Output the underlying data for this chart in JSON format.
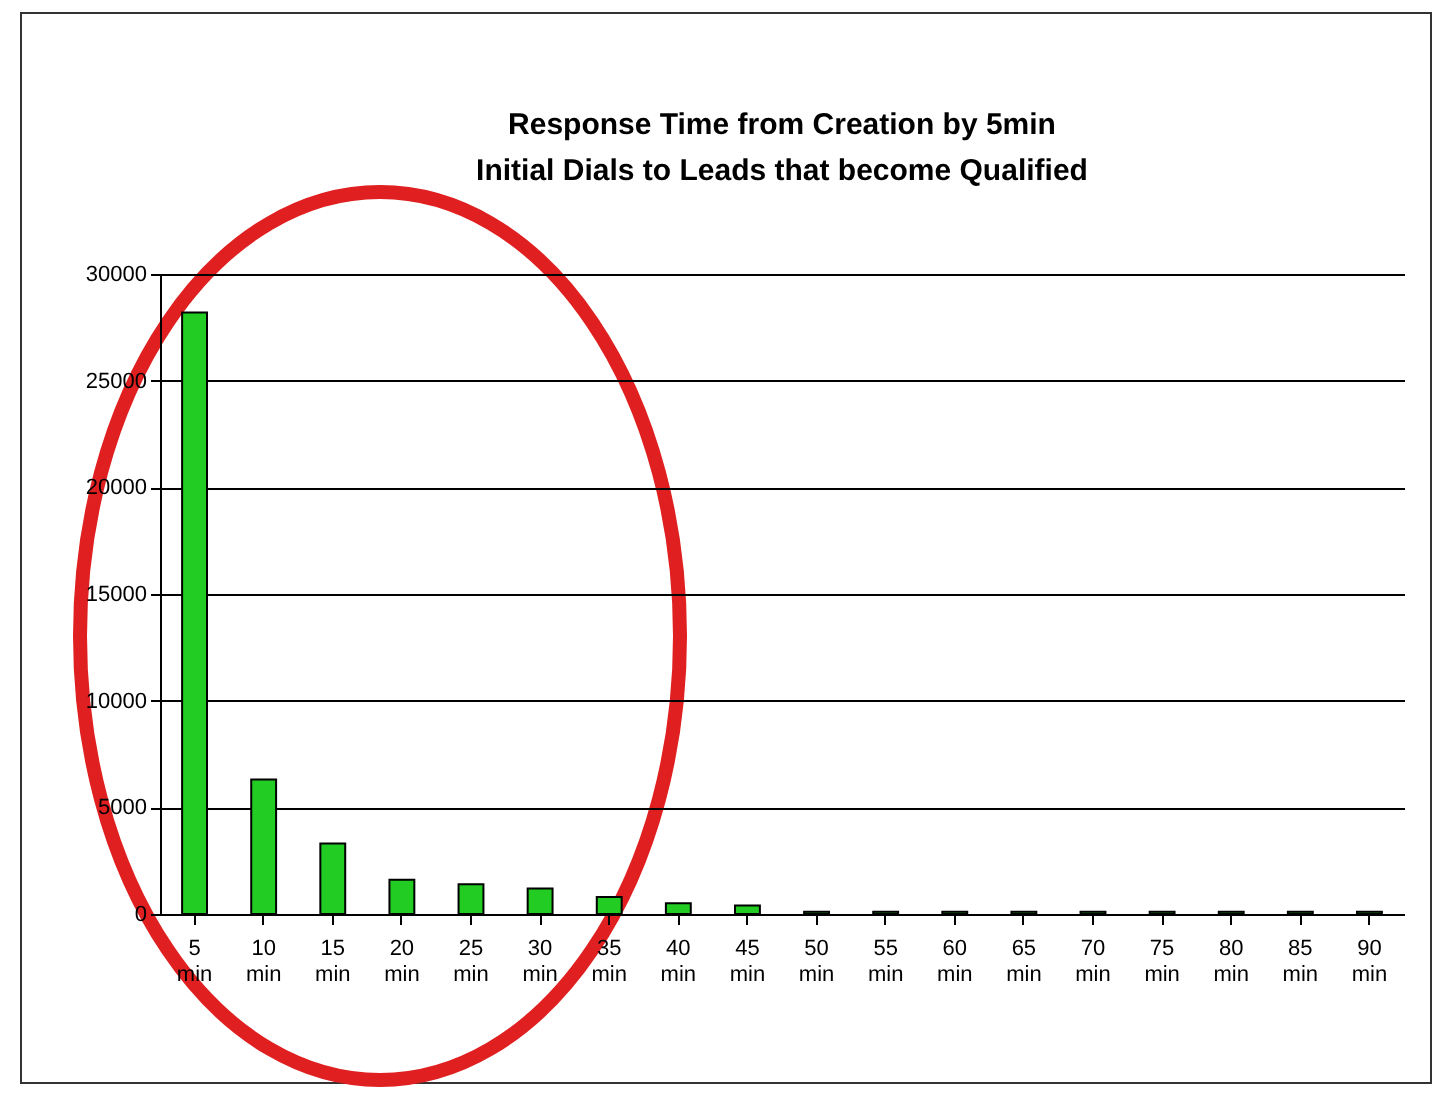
{
  "chart_data": {
    "type": "bar",
    "title": "Response Time from Creation by 5min",
    "subtitle": "Initial Dials to Leads that become Qualified",
    "categories": [
      "5 min",
      "10 min",
      "15 min",
      "20 min",
      "25 min",
      "30 min",
      "35 min",
      "40 min",
      "45 min",
      "50 min",
      "55 min",
      "60 min",
      "65 min",
      "70 min",
      "75 min",
      "80 min",
      "85 min",
      "90 min"
    ],
    "values": [
      28200,
      6300,
      3300,
      1600,
      1400,
      1200,
      800,
      500,
      400,
      100,
      100,
      100,
      100,
      100,
      100,
      100,
      100,
      100
    ],
    "color": "#22cc22",
    "ylim": [
      0,
      30000
    ],
    "yticks": [
      0,
      5000,
      10000,
      15000,
      20000,
      25000,
      30000
    ],
    "grid": "y"
  }
}
